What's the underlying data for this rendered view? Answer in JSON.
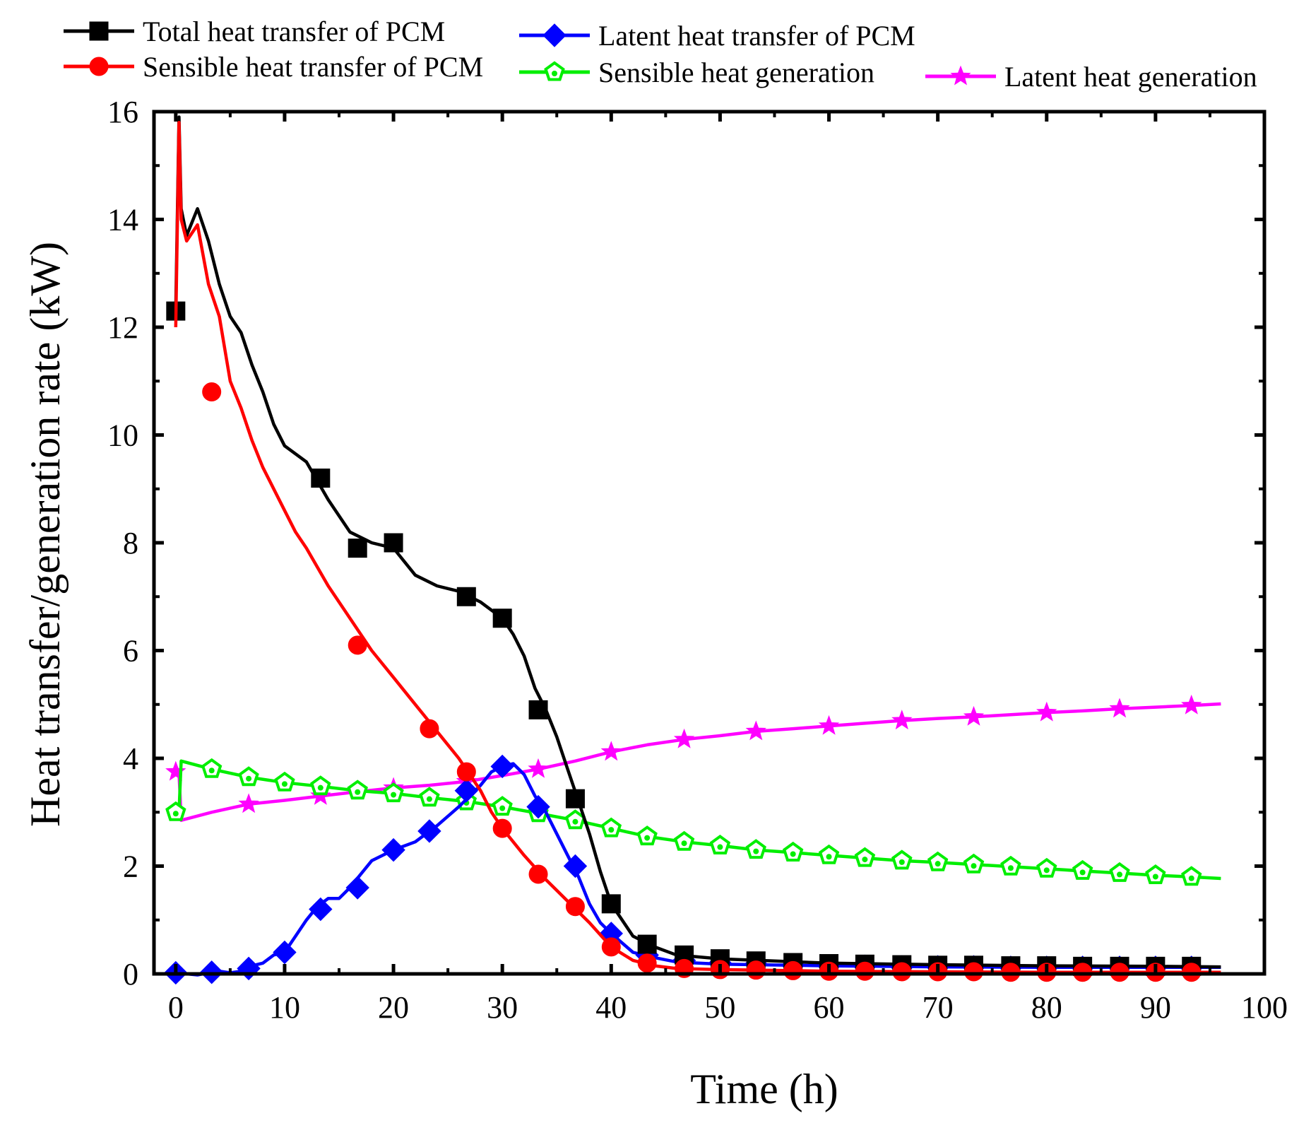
{
  "chart_data": {
    "type": "line",
    "xlabel": "Time (h)",
    "ylabel": "Heat transfer/generation rate (kW)",
    "xlim": [
      -2,
      100
    ],
    "ylim": [
      0,
      16
    ],
    "xticks": [
      "0",
      "10",
      "20",
      "30",
      "40",
      "50",
      "60",
      "70",
      "80",
      "90",
      "100"
    ],
    "yticks": [
      "0",
      "2",
      "4",
      "6",
      "8",
      "10",
      "12",
      "14",
      "16"
    ],
    "grid": false,
    "legend_position": "top",
    "series": [
      {
        "name": "Total heat transfer of PCM",
        "color": "#000000",
        "marker": "square",
        "x": [
          0,
          0.3,
          0.5,
          1,
          2,
          3,
          4,
          5,
          6,
          7,
          8,
          9,
          10,
          12,
          14,
          16,
          18,
          20,
          22,
          24,
          26,
          27,
          28,
          30,
          31,
          32,
          33,
          34,
          35,
          36,
          37,
          38,
          39,
          40,
          42,
          44,
          46,
          50,
          55,
          60,
          70,
          80,
          90,
          96
        ],
        "y": [
          12.3,
          15.9,
          14.2,
          13.7,
          14.2,
          13.6,
          12.8,
          12.2,
          11.9,
          11.3,
          10.8,
          10.2,
          9.8,
          9.5,
          8.8,
          8.2,
          8.0,
          7.9,
          7.4,
          7.2,
          7.1,
          7.0,
          6.9,
          6.6,
          6.3,
          5.9,
          5.3,
          4.9,
          4.4,
          3.8,
          3.2,
          2.6,
          1.9,
          1.3,
          0.7,
          0.5,
          0.35,
          0.28,
          0.24,
          0.2,
          0.17,
          0.15,
          0.14,
          0.13
        ],
        "markers_x": [
          0,
          13.3,
          16.7,
          20,
          26.7,
          30,
          33.3,
          36.7,
          40,
          43.3,
          46.7,
          50,
          53.3,
          56.7,
          60,
          63.3,
          66.7,
          70,
          73.3,
          76.7,
          80,
          83.3,
          86.7,
          90,
          93.3
        ],
        "markers_y": [
          12.3,
          9.2,
          7.9,
          8.0,
          7.0,
          6.6,
          4.9,
          3.25,
          1.3,
          0.55,
          0.35,
          0.28,
          0.24,
          0.21,
          0.19,
          0.18,
          0.17,
          0.16,
          0.16,
          0.15,
          0.15,
          0.14,
          0.14,
          0.14,
          0.14
        ]
      },
      {
        "name": "Sensible heat transfer of PCM",
        "color": "#ff0000",
        "marker": "circle",
        "x": [
          0,
          0.3,
          0.5,
          1,
          2,
          3,
          4,
          5,
          6,
          7,
          8,
          9,
          10,
          11,
          12,
          14,
          16,
          18,
          20,
          22,
          24,
          26,
          27,
          28,
          29,
          30,
          32,
          34,
          36,
          38,
          40,
          42,
          44,
          46,
          50,
          60,
          70,
          80,
          90,
          96
        ],
        "y": [
          12.0,
          15.8,
          14.0,
          13.6,
          13.9,
          12.8,
          12.2,
          11.0,
          10.5,
          9.9,
          9.4,
          9.0,
          8.6,
          8.2,
          7.9,
          7.2,
          6.6,
          6.0,
          5.5,
          5.0,
          4.5,
          4.0,
          3.7,
          3.4,
          3.0,
          2.7,
          2.2,
          1.75,
          1.35,
          0.95,
          0.5,
          0.25,
          0.15,
          0.1,
          0.08,
          0.05,
          0.04,
          0.03,
          0.03,
          0.03
        ],
        "markers_x": [
          3.3,
          16.7,
          23.3,
          26.7,
          30,
          33.3,
          36.7,
          40,
          43.3,
          46.7,
          50,
          53.3,
          56.7,
          60,
          63.3,
          66.7,
          70,
          73.3,
          76.7,
          80,
          83.3,
          86.7,
          90,
          93.3
        ],
        "markers_y": [
          10.8,
          6.1,
          4.55,
          3.75,
          2.7,
          1.85,
          1.25,
          0.5,
          0.2,
          0.1,
          0.08,
          0.07,
          0.06,
          0.05,
          0.05,
          0.04,
          0.04,
          0.04,
          0.03,
          0.03,
          0.03,
          0.03,
          0.03,
          0.03
        ]
      },
      {
        "name": "Latent heat transfer of PCM",
        "color": "#0000ff",
        "marker": "diamond",
        "x": [
          0,
          1,
          2,
          3,
          4,
          5,
          6,
          7,
          8,
          9,
          10,
          11,
          12,
          13,
          14,
          15,
          16,
          17,
          18,
          20,
          22,
          24,
          26,
          28,
          29,
          30,
          31,
          32,
          33,
          34,
          35,
          36,
          37,
          38,
          39,
          40,
          42,
          44,
          46,
          50,
          60,
          70,
          80,
          90,
          96
        ],
        "y": [
          0.02,
          0.0,
          -0.02,
          0.02,
          0.05,
          0.02,
          0.05,
          0.15,
          0.2,
          0.35,
          0.4,
          0.7,
          1.0,
          1.25,
          1.4,
          1.4,
          1.6,
          1.85,
          2.1,
          2.3,
          2.45,
          2.75,
          3.1,
          3.5,
          3.75,
          3.85,
          3.9,
          3.7,
          3.3,
          3.0,
          2.6,
          2.2,
          1.8,
          1.3,
          0.95,
          0.75,
          0.4,
          0.3,
          0.22,
          0.18,
          0.15,
          0.13,
          0.12,
          0.12,
          0.12
        ],
        "markers_x": [
          0,
          3.3,
          6.7,
          10,
          13.3,
          16.7,
          20,
          23.3,
          26.7,
          30,
          33.3,
          36.7,
          40,
          43.3,
          46.7,
          50,
          53.3,
          56.7,
          60,
          63.3,
          66.7,
          70,
          73.3,
          76.7,
          80,
          83.3,
          86.7,
          90,
          93.3
        ],
        "markers_y": [
          0.02,
          0.03,
          0.1,
          0.4,
          1.2,
          1.6,
          2.3,
          2.65,
          3.4,
          3.85,
          3.1,
          2.0,
          0.75,
          0.35,
          0.25,
          0.2,
          0.18,
          0.16,
          0.15,
          0.14,
          0.13,
          0.13,
          0.13,
          0.12,
          0.12,
          0.12,
          0.12,
          0.12,
          0.12
        ]
      },
      {
        "name": "Sensible heat generation",
        "color": "#00ee00",
        "marker": "pentagon",
        "x": [
          0,
          0.3,
          0.5,
          3.3,
          6.7,
          10,
          13.3,
          16.7,
          20,
          23.3,
          26.7,
          30,
          33.3,
          36.7,
          40,
          43.3,
          46.7,
          50,
          53.3,
          56.7,
          60,
          63.3,
          66.7,
          70,
          73.3,
          76.7,
          80,
          83.3,
          86.7,
          90,
          93.3,
          96
        ],
        "y": [
          3.0,
          3.0,
          3.95,
          3.8,
          3.65,
          3.55,
          3.48,
          3.4,
          3.35,
          3.27,
          3.2,
          3.1,
          2.98,
          2.85,
          2.7,
          2.55,
          2.45,
          2.38,
          2.3,
          2.25,
          2.2,
          2.15,
          2.1,
          2.07,
          2.03,
          1.99,
          1.95,
          1.91,
          1.87,
          1.83,
          1.8,
          1.77
        ],
        "markers_x": [
          0,
          3.3,
          6.7,
          10,
          13.3,
          16.7,
          20,
          23.3,
          26.7,
          30,
          33.3,
          36.7,
          40,
          43.3,
          46.7,
          50,
          53.3,
          56.7,
          60,
          63.3,
          66.7,
          70,
          73.3,
          76.7,
          80,
          83.3,
          86.7,
          90,
          93.3
        ],
        "markers_y": [
          3.0,
          3.8,
          3.65,
          3.55,
          3.48,
          3.4,
          3.35,
          3.27,
          3.2,
          3.1,
          2.98,
          2.85,
          2.7,
          2.55,
          2.45,
          2.38,
          2.3,
          2.25,
          2.2,
          2.15,
          2.1,
          2.07,
          2.03,
          1.99,
          1.95,
          1.91,
          1.87,
          1.83,
          1.8
        ]
      },
      {
        "name": "Latent heat generation",
        "color": "#ff00ff",
        "marker": "star",
        "x": [
          0,
          0.3,
          0.5,
          3.3,
          6.7,
          10,
          13.3,
          16.7,
          20,
          23.3,
          26.7,
          30,
          33.3,
          36.7,
          40,
          43.3,
          46.7,
          50,
          53.3,
          56.7,
          60,
          63.3,
          66.7,
          70,
          73.3,
          76.7,
          80,
          83.3,
          86.7,
          90,
          93.3,
          96
        ],
        "y": [
          3.75,
          3.75,
          2.85,
          3.0,
          3.15,
          3.22,
          3.3,
          3.38,
          3.45,
          3.5,
          3.57,
          3.68,
          3.8,
          3.95,
          4.12,
          4.25,
          4.35,
          4.42,
          4.5,
          4.55,
          4.6,
          4.65,
          4.7,
          4.74,
          4.77,
          4.81,
          4.85,
          4.88,
          4.92,
          4.95,
          4.98,
          5.01
        ],
        "markers_x": [
          0,
          6.7,
          13.3,
          20,
          26.7,
          33.3,
          40,
          46.7,
          53.3,
          60,
          66.7,
          73.3,
          80,
          86.7,
          93.3
        ],
        "markers_y": [
          3.75,
          3.15,
          3.3,
          3.45,
          3.57,
          3.8,
          4.12,
          4.35,
          4.5,
          4.6,
          4.7,
          4.77,
          4.85,
          4.92,
          4.98
        ]
      }
    ]
  }
}
